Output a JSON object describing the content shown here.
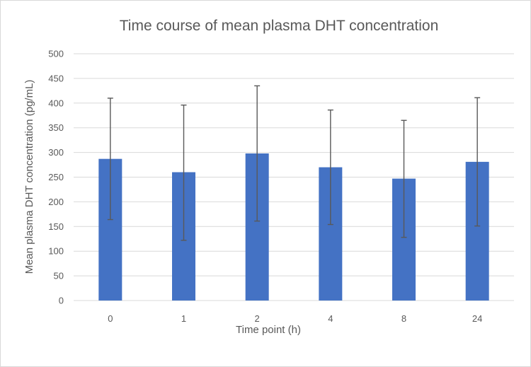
{
  "chart_data": {
    "type": "bar",
    "title": "Time course of mean plasma DHT concentration",
    "xlabel": "Time point (h)",
    "ylabel": "Mean  plasma DHT concentration (pg/mL)",
    "categories": [
      "0",
      "1",
      "2",
      "4",
      "8",
      "24"
    ],
    "values": [
      287,
      260,
      298,
      270,
      247,
      281
    ],
    "error_upper": [
      410,
      396,
      435,
      386,
      365,
      411
    ],
    "error_lower": [
      164,
      122,
      161,
      154,
      128,
      151
    ],
    "ylim": [
      0,
      500
    ],
    "yticks": [
      "0",
      "50",
      "100",
      "150",
      "200",
      "250",
      "300",
      "350",
      "400",
      "450",
      "500"
    ],
    "grid": true,
    "legend": "none",
    "bar_color": "#4472c4",
    "error_color": "#595959"
  }
}
